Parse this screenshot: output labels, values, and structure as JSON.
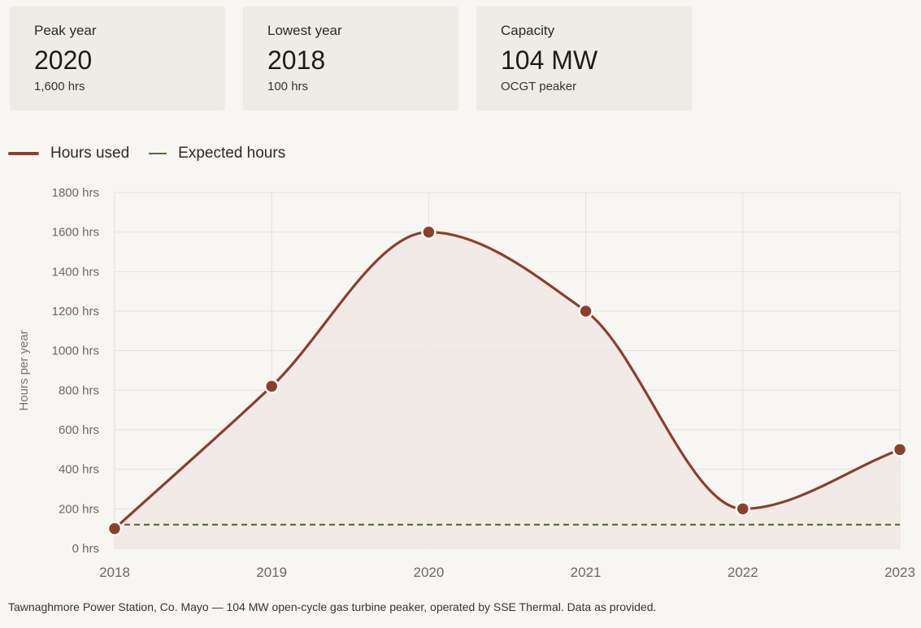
{
  "cards": [
    {
      "label": "Peak year",
      "value": "2020",
      "sub": "1,600 hrs"
    },
    {
      "label": "Lowest year",
      "value": "2018",
      "sub": "100 hrs"
    },
    {
      "label": "Capacity",
      "value": "104 MW",
      "sub": "OCGT peaker"
    }
  ],
  "legend": {
    "hours_used": "Hours used",
    "expected_hours": "Expected hours"
  },
  "footer": "Tawnaghmore Power Station, Co. Mayo — 104 MW open-cycle gas turbine peaker, operated by SSE Thermal. Data as provided.",
  "colors": {
    "line": "#8c3f2b",
    "area": "#f0e8e4",
    "expected": "#556b2f",
    "grid": "#e4e1dc"
  },
  "chart_data": {
    "type": "line",
    "x": [
      "2018",
      "2019",
      "2020",
      "2021",
      "2022",
      "2023"
    ],
    "series": [
      {
        "name": "Hours used",
        "values": [
          100,
          820,
          1600,
          1200,
          200,
          500
        ]
      },
      {
        "name": "Expected hours",
        "values": [
          120,
          120,
          120,
          120,
          120,
          120
        ]
      }
    ],
    "ylabel": "Hours per year",
    "ylim": [
      0,
      1800
    ],
    "yticks": [
      0,
      200,
      400,
      600,
      800,
      1000,
      1200,
      1400,
      1600,
      1800
    ],
    "ytick_labels": [
      "0 hrs",
      "200 hrs",
      "400 hrs",
      "600 hrs",
      "800 hrs",
      "1000 hrs",
      "1200 hrs",
      "1400 hrs",
      "1600 hrs",
      "1800 hrs"
    ],
    "grid": true,
    "legend_position": "top-left"
  }
}
